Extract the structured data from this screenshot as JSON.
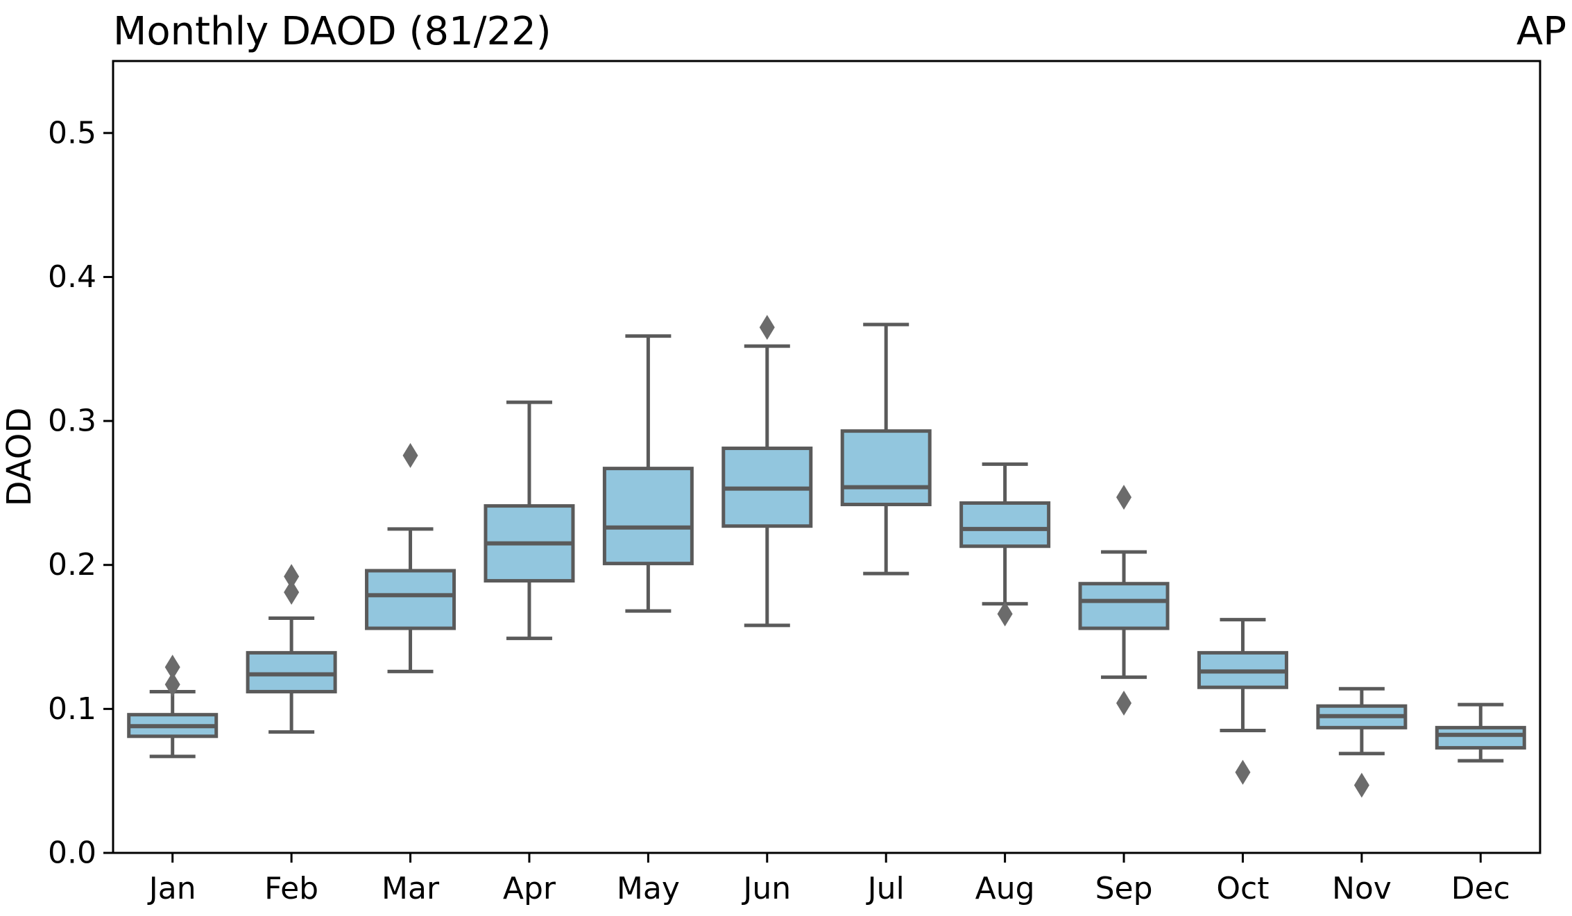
{
  "chart_data": {
    "type": "box",
    "title": "Monthly DAOD (81/22)",
    "corner_label": "AP",
    "ylabel": "DAOD",
    "xlabel": "",
    "categories": [
      "Jan",
      "Feb",
      "Mar",
      "Apr",
      "May",
      "Jun",
      "Jul",
      "Aug",
      "Sep",
      "Oct",
      "Nov",
      "Dec"
    ],
    "ylim": [
      0.0,
      0.55
    ],
    "yticks": [
      0.0,
      0.1,
      0.2,
      0.3,
      0.4,
      0.5
    ],
    "grid": false,
    "legend": null,
    "colors": {
      "box_fill": "#92C6DE",
      "box_edge": "#5A5A5A",
      "median": "#5A5A5A",
      "whisker": "#5A5A5A",
      "outlier": "#6B6B6B",
      "spine": "#000000"
    },
    "series": [
      {
        "month": "Jan",
        "whisker_low": 0.067,
        "q1": 0.081,
        "median": 0.088,
        "q3": 0.096,
        "whisker_high": 0.112,
        "outliers": [
          0.117,
          0.129
        ]
      },
      {
        "month": "Feb",
        "whisker_low": 0.084,
        "q1": 0.112,
        "median": 0.124,
        "q3": 0.139,
        "whisker_high": 0.163,
        "outliers": [
          0.181,
          0.192
        ]
      },
      {
        "month": "Mar",
        "whisker_low": 0.126,
        "q1": 0.156,
        "median": 0.179,
        "q3": 0.196,
        "whisker_high": 0.225,
        "outliers": [
          0.276
        ]
      },
      {
        "month": "Apr",
        "whisker_low": 0.149,
        "q1": 0.189,
        "median": 0.215,
        "q3": 0.241,
        "whisker_high": 0.313,
        "outliers": []
      },
      {
        "month": "May",
        "whisker_low": 0.168,
        "q1": 0.201,
        "median": 0.226,
        "q3": 0.267,
        "whisker_high": 0.359,
        "outliers": []
      },
      {
        "month": "Jun",
        "whisker_low": 0.158,
        "q1": 0.227,
        "median": 0.253,
        "q3": 0.281,
        "whisker_high": 0.352,
        "outliers": [
          0.365
        ]
      },
      {
        "month": "Jul",
        "whisker_low": 0.194,
        "q1": 0.242,
        "median": 0.254,
        "q3": 0.293,
        "whisker_high": 0.367,
        "outliers": []
      },
      {
        "month": "Aug",
        "whisker_low": 0.173,
        "q1": 0.213,
        "median": 0.225,
        "q3": 0.243,
        "whisker_high": 0.27,
        "outliers": [
          0.166
        ]
      },
      {
        "month": "Sep",
        "whisker_low": 0.122,
        "q1": 0.156,
        "median": 0.175,
        "q3": 0.187,
        "whisker_high": 0.209,
        "outliers": [
          0.247,
          0.104
        ]
      },
      {
        "month": "Oct",
        "whisker_low": 0.085,
        "q1": 0.115,
        "median": 0.126,
        "q3": 0.139,
        "whisker_high": 0.162,
        "outliers": [
          0.056
        ]
      },
      {
        "month": "Nov",
        "whisker_low": 0.069,
        "q1": 0.087,
        "median": 0.095,
        "q3": 0.102,
        "whisker_high": 0.114,
        "outliers": [
          0.047
        ]
      },
      {
        "month": "Dec",
        "whisker_low": 0.064,
        "q1": 0.073,
        "median": 0.082,
        "q3": 0.087,
        "whisker_high": 0.103,
        "outliers": []
      }
    ]
  }
}
